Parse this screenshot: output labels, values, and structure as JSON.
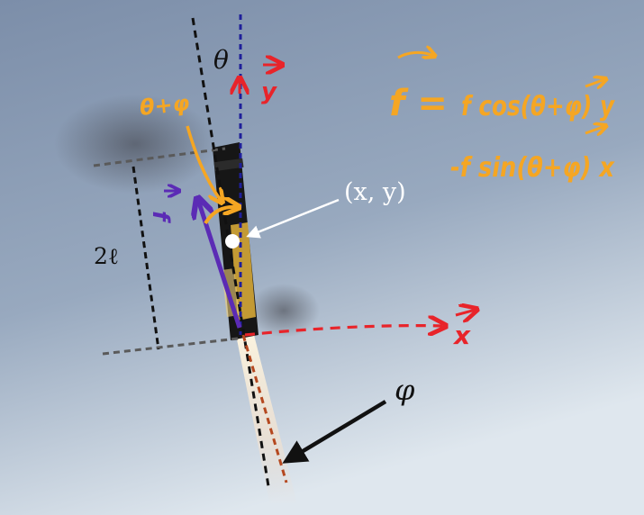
{
  "labels": {
    "theta": "θ",
    "theta_plus_phi": "θ+φ",
    "phi": "φ",
    "position": "(x, y)",
    "length": "2ℓ",
    "f_vec": "f",
    "x_axis": "x",
    "y_axis": "y"
  },
  "equation": {
    "lhs": "f =",
    "line1": "f cos(θ+φ) y",
    "line2": "-f sin(θ+φ) x"
  },
  "colors": {
    "sky_top": "#7f91ab",
    "sky_bottom": "#dfe7ee",
    "orange": "#f5a623",
    "red": "#e8242a",
    "purple": "#5b2bb5",
    "navy": "#1f1f9a",
    "black": "#111111",
    "grey": "#5a5a5a",
    "white": "#ffffff",
    "rust": "#b5481f"
  }
}
